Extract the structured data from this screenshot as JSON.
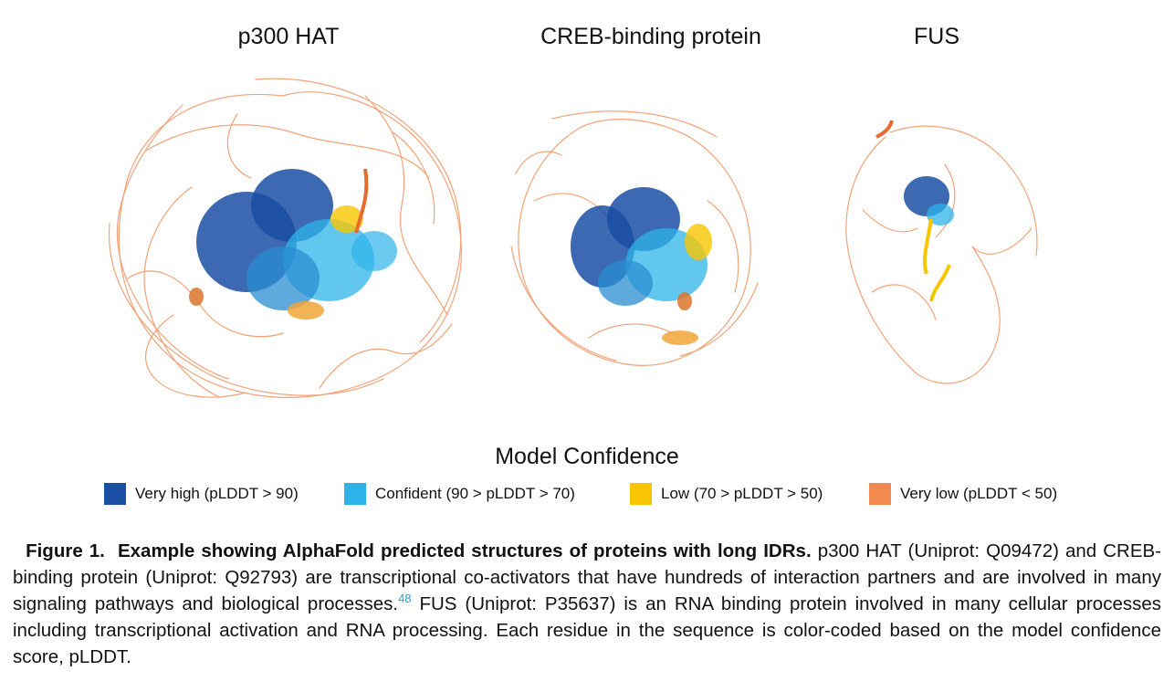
{
  "panels": [
    {
      "title": "p300 HAT"
    },
    {
      "title": "CREB-binding protein"
    },
    {
      "title": "FUS"
    }
  ],
  "legend": {
    "title": "Model Confidence",
    "items": [
      {
        "label": "Very high (pLDDT > 90)",
        "color": "#1a4fa3"
      },
      {
        "label": "Confident (90 > pLDDT > 70)",
        "color": "#2eb4ea"
      },
      {
        "label": "Low (70 > pLDDT > 50)",
        "color": "#f7c600"
      },
      {
        "label": "Very low (pLDDT < 50)",
        "color": "#f28a4f"
      }
    ]
  },
  "caption": {
    "label": "Figure 1.",
    "heading": "Example showing AlphaFold predicted structures of proteins with long IDRs.",
    "text_1": " p300 HAT (Uniprot: Q09472) and CREB-binding protein (Uniprot: Q92793) are transcriptional co-activators that have hundreds of interaction partners and are involved in many signaling pathways and biological processes.",
    "ref": "48",
    "text_2": " FUS (Uniprot: P35637) is an RNA binding protein involved in many cellular processes including transcriptional activation and RNA processing. Each residue in the sequence is color-coded based on the model confidence score, pLDDT."
  }
}
